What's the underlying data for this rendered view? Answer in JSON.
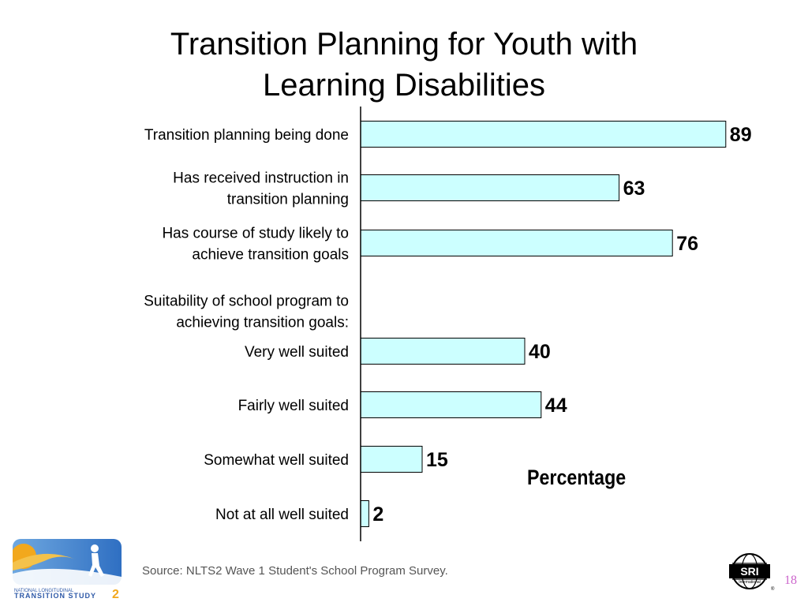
{
  "slide": {
    "title": "Transition Planning for Youth with\nLearning Disabilities",
    "source": "Source: NLTS2 Wave 1 Student's School Program Survey.",
    "page_number": "18",
    "logos": {
      "nlts2_lines": [
        "NATIONAL LONGITUDINAL",
        "TRANSITION STUDY"
      ],
      "nlts2_num": "2",
      "sri_lines": [
        "SRI",
        "International"
      ]
    }
  },
  "chart_data": {
    "type": "bar",
    "orientation": "horizontal",
    "x_axis_label": "Percentage",
    "xlim": [
      0,
      100
    ],
    "bar_color": "#ccffff",
    "group_heading": "Suitability of school program to\nachieving transition goals:",
    "categories": [
      "Transition planning being done",
      "Has received instruction in\ntransition planning",
      "Has course of study likely to\nachieve  transition goals",
      "Very well suited",
      "Fairly well suited",
      "Somewhat well suited",
      "Not at all well suited"
    ],
    "values": [
      89,
      63,
      76,
      40,
      44,
      15,
      2
    ]
  }
}
